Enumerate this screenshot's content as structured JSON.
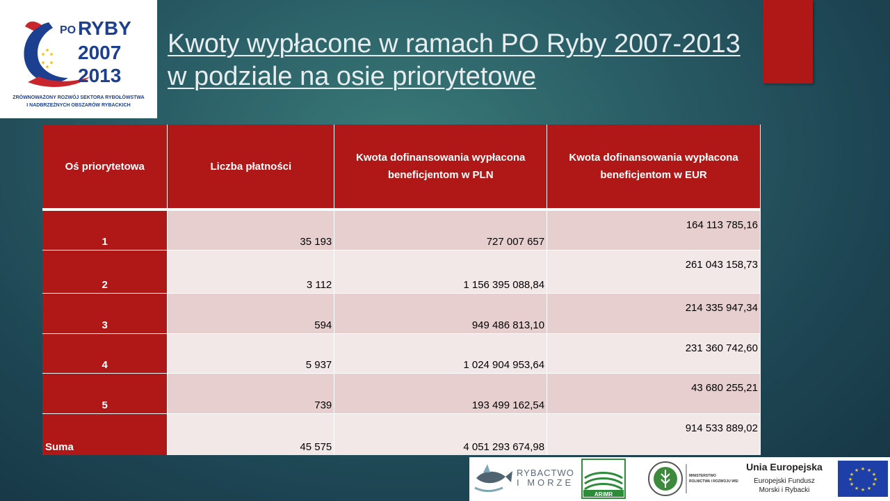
{
  "logo": {
    "po": "PO",
    "ryby": "RYBY",
    "year_start": "2007",
    "year_end": "2013",
    "tagline_1": "ZRÓWNOWAŻONY ROZWÓJ SEKTORA RYBOŁÓWSTWA",
    "tagline_2": "I NADBRZEŻNYCH OBSZARÓW RYBACKICH"
  },
  "title": "Kwoty wypłacone w ramach PO Ryby 2007-2013 w podziale na osie priorytetowe",
  "table": {
    "headers": [
      "Oś priorytetowa",
      "Liczba płatności",
      "Kwota dofinansowania wypłacona beneficjentom  w PLN",
      "Kwota dofinansowania wypłacona beneficjentom  w EUR"
    ],
    "rows": [
      {
        "axis": "1",
        "count": "35 193",
        "pln": "727 007 657",
        "eur": "164 113 785,16"
      },
      {
        "axis": "2",
        "count": "3 112",
        "pln": "1 156 395 088,84",
        "eur": "261 043 158,73"
      },
      {
        "axis": "3",
        "count": "594",
        "pln": "949 486 813,10",
        "eur": "214 335 947,34"
      },
      {
        "axis": "4",
        "count": "5 937",
        "pln": "1 024 904 953,64",
        "eur": "231 360 742,60"
      },
      {
        "axis": "5",
        "count": "739",
        "pln": "193 499 162,54",
        "eur": "43 680 255,21"
      },
      {
        "axis": "Suma",
        "count": "45 575",
        "pln": "4 051 293 674,98",
        "eur": "914 533 889,02"
      }
    ]
  },
  "footer": {
    "rybactwo_1": "RYBACTWO",
    "rybactwo_2": "I MORZE",
    "arimr": "ARiMR",
    "ministry_1": "MINISTERSTWO",
    "ministry_2": "ROLNICTWA I ROZWOJU WSI",
    "eu_title": "Unia Europejska",
    "eu_sub_1": "Europejski Fundusz",
    "eu_sub_2": "Morski i Rybacki"
  },
  "colors": {
    "accent_red": "#b01818",
    "row_odd": "#e7cfcf",
    "row_even": "#f3e8e8",
    "logo_blue": "#1d3f8f"
  }
}
